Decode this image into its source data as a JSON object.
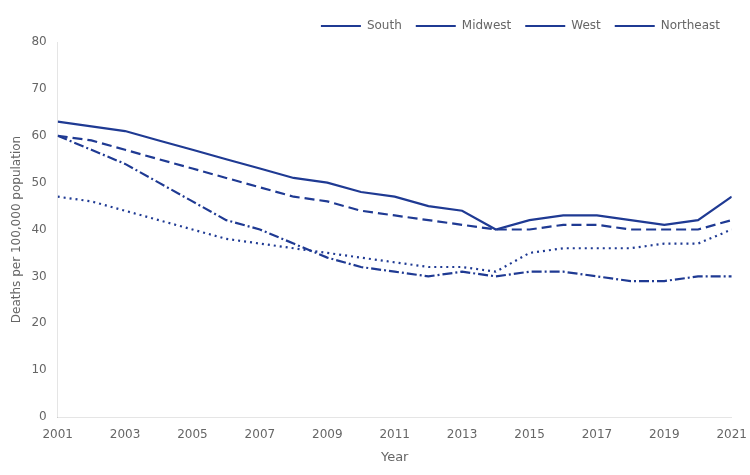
{
  "chart_data": {
    "type": "line",
    "xlabel": "Year",
    "ylabel": "Deaths per 100,000 population",
    "x": [
      2001,
      2002,
      2003,
      2004,
      2005,
      2006,
      2007,
      2008,
      2009,
      2010,
      2011,
      2012,
      2013,
      2014,
      2015,
      2016,
      2017,
      2018,
      2019,
      2020,
      2021
    ],
    "series": [
      {
        "name": "South",
        "color": "#1f3a93",
        "line_style": "solid",
        "values": [
          63,
          62,
          61,
          59,
          57,
          55,
          53,
          51,
          50,
          48,
          47,
          45,
          44,
          40,
          42,
          43,
          43,
          42,
          41,
          42,
          47
        ]
      },
      {
        "name": "Midwest",
        "color": "#1f3a93",
        "line_style": "dashed",
        "values": [
          60,
          59,
          57,
          55,
          53,
          51,
          49,
          47,
          46,
          44,
          43,
          42,
          41,
          40,
          40,
          41,
          41,
          40,
          40,
          40,
          42
        ]
      },
      {
        "name": "West",
        "color": "#1f3a93",
        "line_style": "dotted",
        "values": [
          47,
          46,
          44,
          42,
          40,
          38,
          37,
          36,
          35,
          34,
          33,
          32,
          32,
          31,
          35,
          36,
          36,
          36,
          37,
          37,
          40
        ]
      },
      {
        "name": "Northeast",
        "color": "#1f3a93",
        "line_style": "dashdot",
        "values": [
          60,
          57,
          54,
          50,
          46,
          42,
          40,
          37,
          34,
          32,
          31,
          30,
          31,
          30,
          31,
          31,
          30,
          29,
          29,
          30,
          30
        ]
      }
    ],
    "xlim": [
      2001,
      2021
    ],
    "ylim": [
      0,
      80
    ],
    "xticks": [
      2001,
      2003,
      2005,
      2007,
      2009,
      2011,
      2013,
      2015,
      2017,
      2019,
      2021
    ],
    "yticks": [
      0,
      10,
      20,
      30,
      40,
      50,
      60,
      70,
      80
    ],
    "grid": false,
    "legend": "upper right"
  }
}
